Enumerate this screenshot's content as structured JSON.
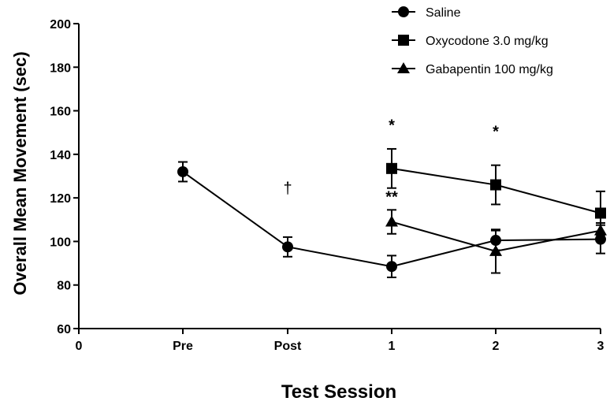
{
  "chart_data": {
    "type": "line",
    "title": "",
    "xlabel": "Test Session",
    "ylabel": "Overall Mean Movement (sec)",
    "ylim": [
      60,
      200
    ],
    "yticks": [
      "60",
      "80",
      "100",
      "120",
      "140",
      "160",
      "180",
      "200"
    ],
    "xticks": [
      "0",
      "Pre",
      "Post",
      "1",
      "2",
      "3"
    ],
    "grid": false,
    "legend_position": "top-right",
    "series": [
      {
        "name": "Saline",
        "marker": "circle",
        "points": [
          {
            "x": "Pre",
            "y": 132,
            "err": 4.5
          },
          {
            "x": "Post",
            "y": 97.5,
            "err": 4.5
          },
          {
            "x": "1",
            "y": 88.5,
            "err": 5
          },
          {
            "x": "2",
            "y": 100.5,
            "err": 4.5
          },
          {
            "x": "3",
            "y": 101,
            "err": 6.5
          }
        ]
      },
      {
        "name": "Oxycodone 3.0 mg/kg",
        "marker": "square",
        "points": [
          {
            "x": "1",
            "y": 133.5,
            "err": 9
          },
          {
            "x": "2",
            "y": 126,
            "err": 9
          },
          {
            "x": "3",
            "y": 113,
            "err": 10
          }
        ]
      },
      {
        "name": "Gabapentin 100 mg/kg",
        "marker": "triangle",
        "points": [
          {
            "x": "1",
            "y": 109,
            "err": 5.5
          },
          {
            "x": "2",
            "y": 95.5,
            "err": 10
          },
          {
            "x": "3",
            "y": 105,
            "err": 3.5
          }
        ]
      }
    ],
    "annotations": [
      {
        "text": "†",
        "x": "Post",
        "y": 122
      },
      {
        "text": "*",
        "x": "1",
        "y": 151
      },
      {
        "text": "**",
        "x": "1",
        "y": 118
      },
      {
        "text": "*",
        "x": "2",
        "y": 148
      }
    ]
  }
}
